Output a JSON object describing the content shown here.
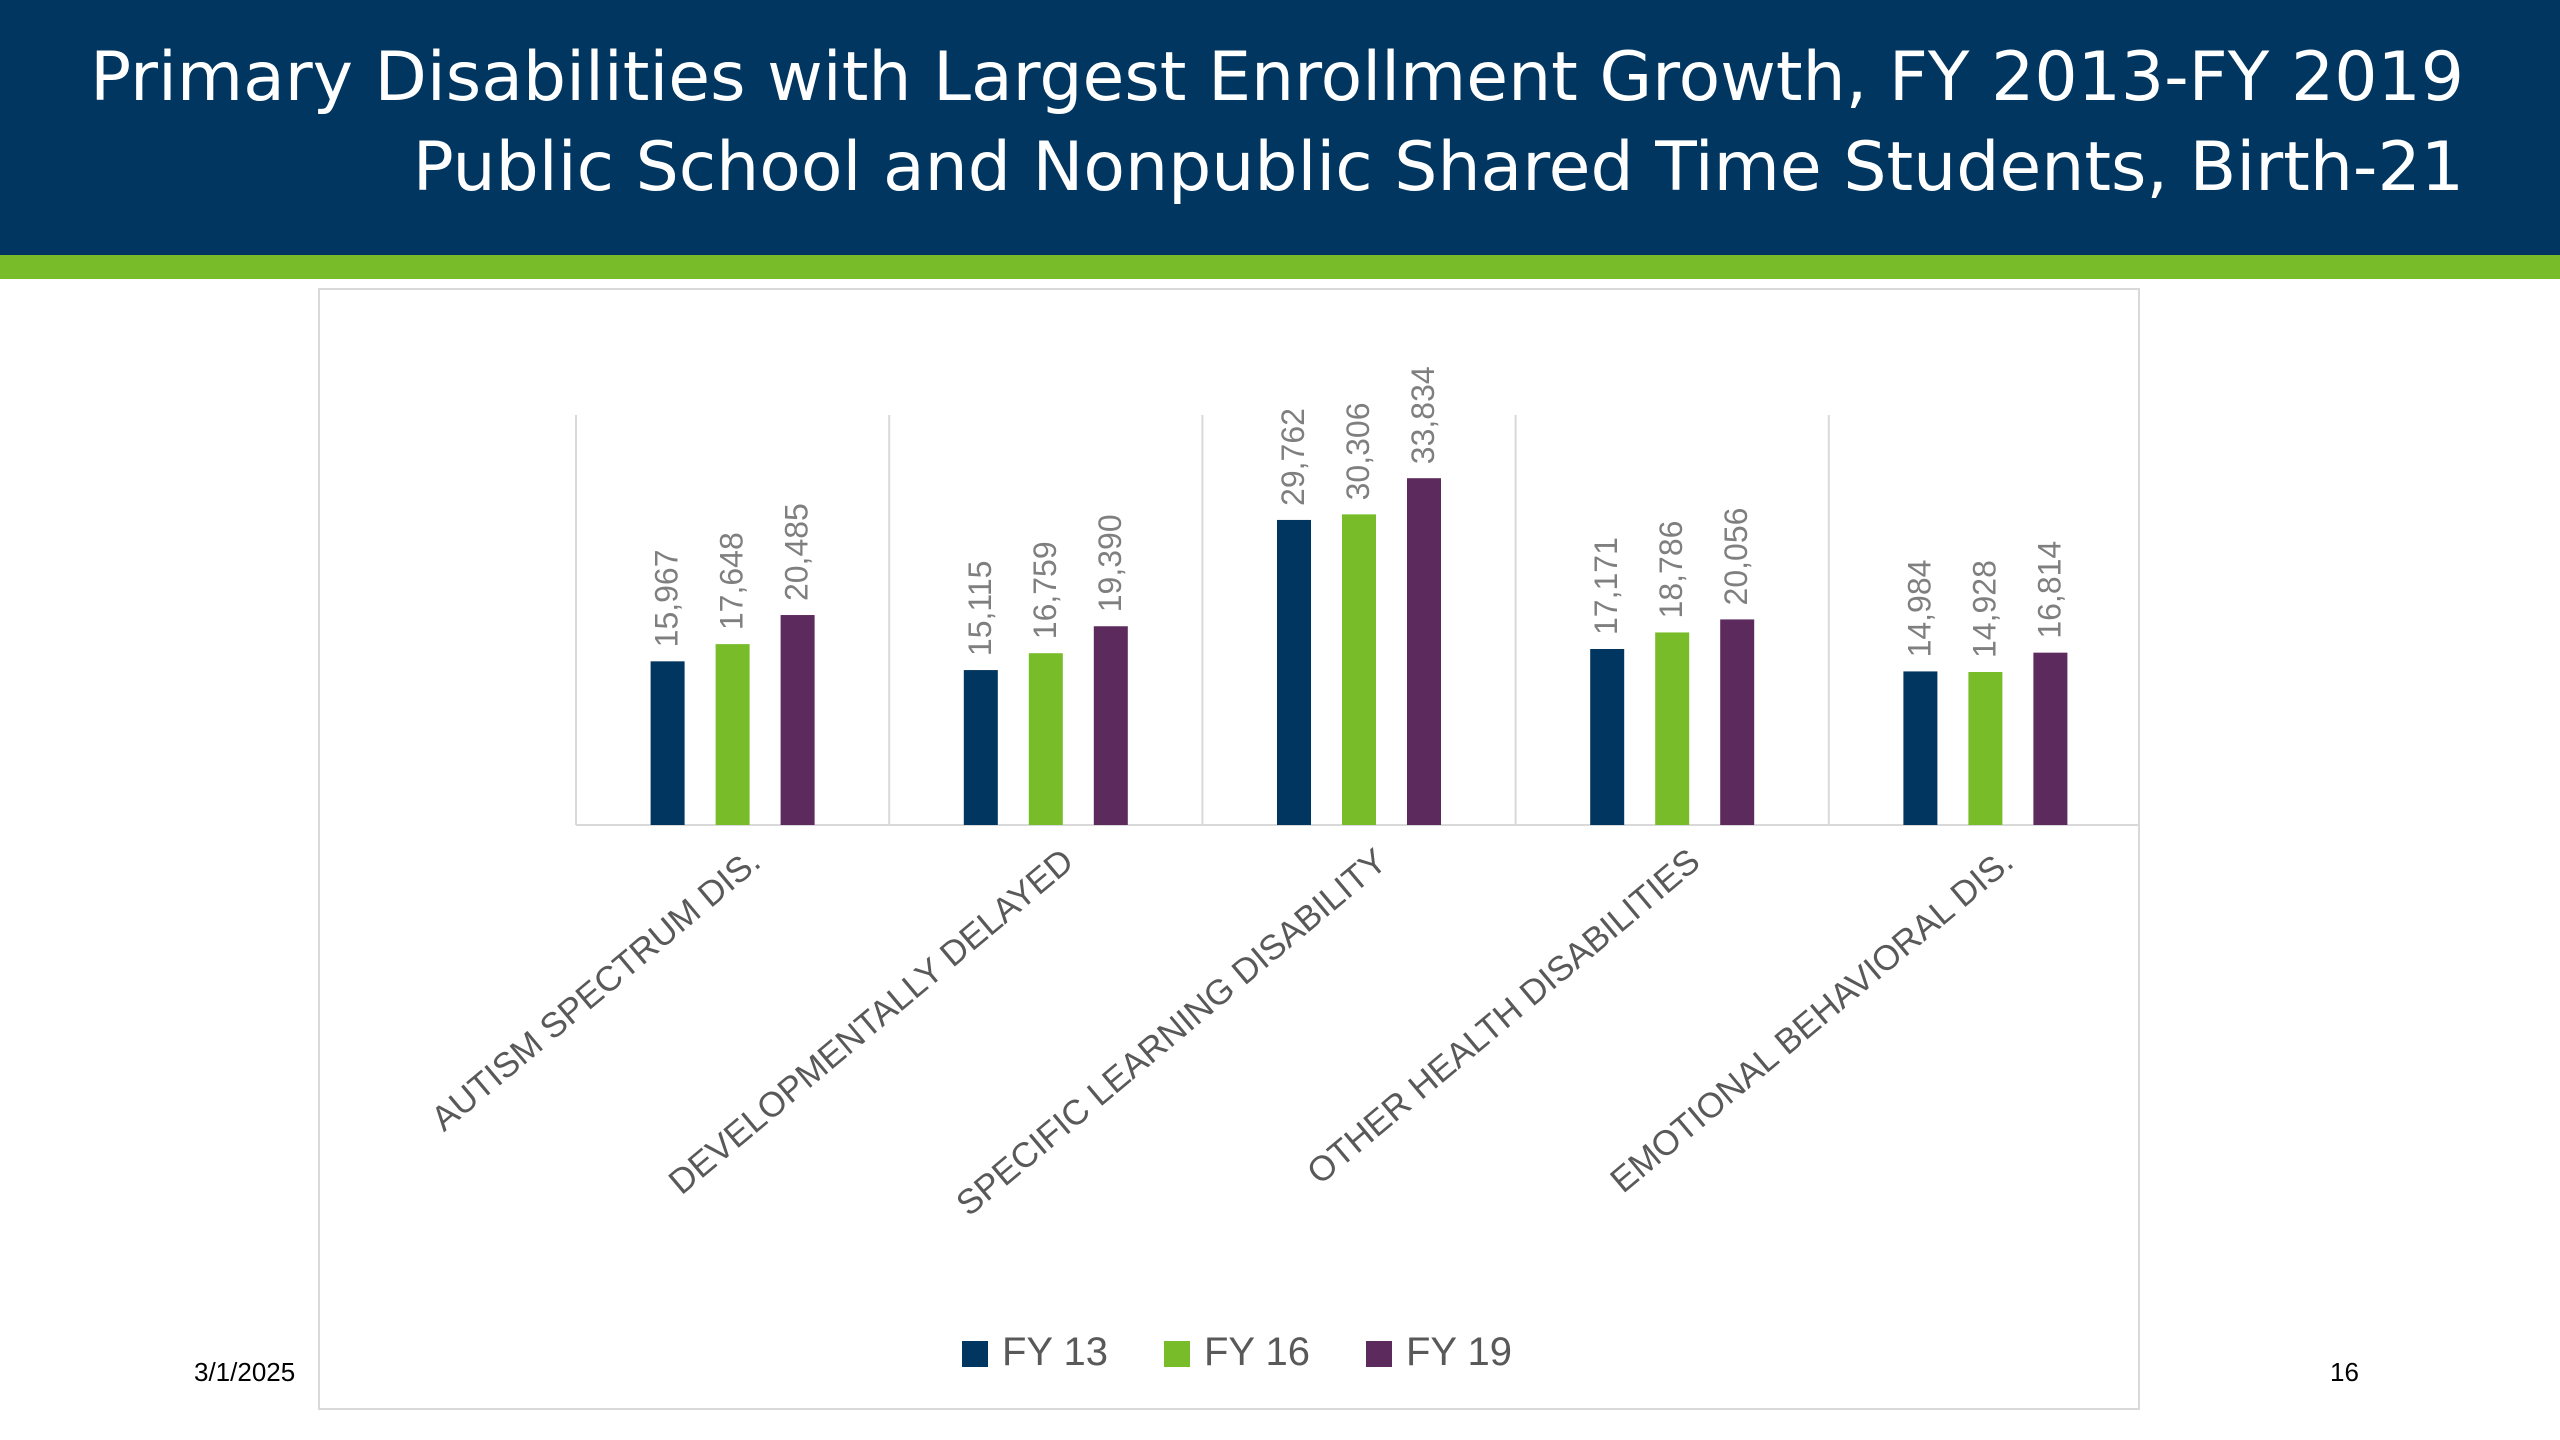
{
  "slide": {
    "title_line1": "Primary Disabilities with Largest Enrollment Growth, FY 2013-FY 2019",
    "title_line2": "Public School and Nonpublic Shared Time Students, Birth-21",
    "date": "3/1/2025",
    "page_number": "16"
  },
  "colors": {
    "header_bg": "#003660",
    "accent": "#78bc2a",
    "series": [
      "#003660",
      "#78bc2a",
      "#5c2a5c"
    ]
  },
  "chart_data": {
    "type": "bar",
    "categories": [
      "AUTISM SPECTRUM DIS.",
      "DEVELOPMENTALLY DELAYED",
      "SPECIFIC LEARNING DISABILITY",
      "OTHER HEALTH DISABILITIES",
      "EMOTIONAL BEHAVIORAL DIS."
    ],
    "series": [
      {
        "name": "FY 13",
        "values": [
          15967,
          15115,
          29762,
          17171,
          14984
        ],
        "labels": [
          "15,967",
          "15,115",
          "29,762",
          "17,171",
          "14,984"
        ]
      },
      {
        "name": "FY 16",
        "values": [
          17648,
          16759,
          30306,
          18786,
          14928
        ],
        "labels": [
          "17,648",
          "16,759",
          "30,306",
          "18,786",
          "14,928"
        ]
      },
      {
        "name": "FY 19",
        "values": [
          20485,
          19390,
          33834,
          20056,
          16814
        ],
        "labels": [
          "20,485",
          "19,390",
          "33,834",
          "20,056",
          "16,814"
        ]
      }
    ],
    "ylim": [
      0,
      40000
    ],
    "legend_position": "bottom",
    "grid": "vertical category separators",
    "data_labels": true
  }
}
